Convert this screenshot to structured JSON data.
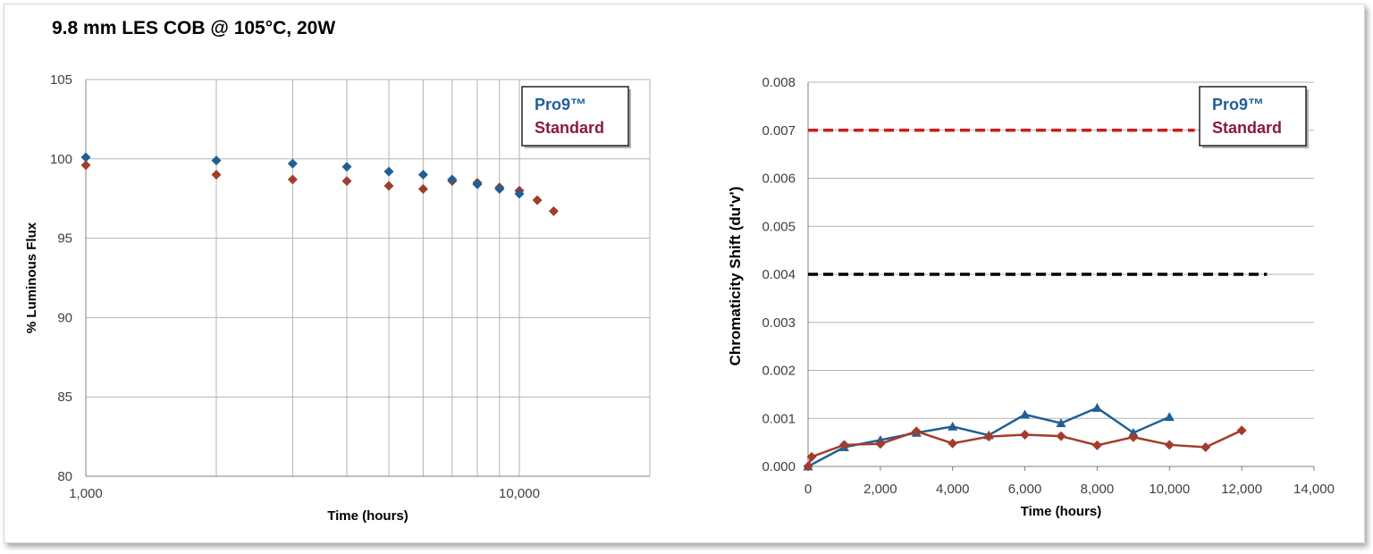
{
  "page": {
    "title": "9.8 mm LES COB @ 105°C, 20W"
  },
  "colors": {
    "pro9": "#1f5f96",
    "standard": "#a33c2c",
    "pro9_legend": "#1f5f96",
    "standard_legend": "#8b1a3f",
    "limit_red": "#d01c1c",
    "limit_black": "#000000",
    "grid": "#b3b3b3"
  },
  "chart_data": [
    {
      "type": "scatter",
      "xscale": "log",
      "xlabel": "Time (hours)",
      "ylabel": "% Luminous Flux",
      "xlim": [
        1000,
        20000
      ],
      "ylim": [
        80,
        105
      ],
      "xtick_labels": [
        "1,000",
        "10,000"
      ],
      "ytick_labels": [
        "80",
        "85",
        "90",
        "95",
        "100",
        "105"
      ],
      "grid": true,
      "legend": {
        "placement": "top-right",
        "entries": [
          "Pro9™",
          "Standard"
        ]
      },
      "series": [
        {
          "name": "Pro9™",
          "marker": "diamond",
          "x": [
            1000,
            2000,
            3000,
            4000,
            5000,
            6000,
            7000,
            8000,
            9000,
            10000
          ],
          "y": [
            100.1,
            99.9,
            99.7,
            99.5,
            99.2,
            99.0,
            98.7,
            98.4,
            98.1,
            97.8
          ]
        },
        {
          "name": "Standard",
          "marker": "diamond",
          "x": [
            1000,
            2000,
            3000,
            4000,
            5000,
            6000,
            7000,
            8000,
            9000,
            10000,
            11000,
            12000
          ],
          "y": [
            99.6,
            99.0,
            98.7,
            98.6,
            98.3,
            98.1,
            98.6,
            98.5,
            98.2,
            98.0,
            97.4,
            96.7
          ]
        }
      ]
    },
    {
      "type": "line",
      "xlabel": "Time (hours)",
      "ylabel": "Chromaticity Shift (du'v')",
      "xlim": [
        0,
        14000
      ],
      "ylim": [
        0,
        0.008
      ],
      "xtick_labels": [
        "0",
        "2,000",
        "4,000",
        "6,000",
        "8,000",
        "10,000",
        "12,000",
        "14,000"
      ],
      "ytick_labels": [
        "0.000",
        "0.001",
        "0.002",
        "0.003",
        "0.004",
        "0.005",
        "0.006",
        "0.007",
        "0.008"
      ],
      "grid": true,
      "legend": {
        "placement": "top-right",
        "entries": [
          "Pro9™",
          "Standard"
        ]
      },
      "reference_lines": [
        {
          "y": 0.007,
          "x_end": 10700,
          "style": "dashed",
          "color": "red"
        },
        {
          "y": 0.004,
          "x_end": 12700,
          "style": "dashed",
          "color": "black"
        }
      ],
      "series": [
        {
          "name": "Pro9™",
          "marker": "triangle",
          "x": [
            0,
            1000,
            2000,
            3000,
            4000,
            5000,
            6000,
            7000,
            8000,
            9000,
            10000
          ],
          "y": [
            0.0,
            0.0004,
            0.00055,
            0.0007,
            0.00083,
            0.00065,
            0.00108,
            0.0009,
            0.00122,
            0.0007,
            0.00103
          ]
        },
        {
          "name": "Standard",
          "marker": "diamond",
          "x": [
            0,
            100,
            1000,
            2000,
            3000,
            4000,
            5000,
            6000,
            7000,
            8000,
            9000,
            10000,
            11000,
            12000
          ],
          "y": [
            0.0,
            0.0002,
            0.00045,
            0.00047,
            0.00073,
            0.00048,
            0.00062,
            0.00066,
            0.00063,
            0.00044,
            0.00061,
            0.00045,
            0.0004,
            0.00075
          ]
        }
      ]
    }
  ]
}
